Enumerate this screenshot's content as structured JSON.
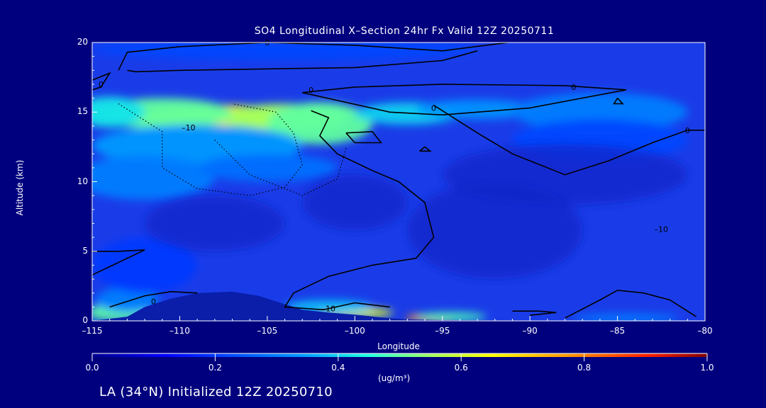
{
  "chart_data": {
    "type": "heatmap",
    "title": "SO4 Longitudinal X–Section 24hr  Fx Valid 12Z 20250711",
    "xlabel": "Longitude",
    "ylabel": "Altitude (km)",
    "xlim": [
      -115,
      -80
    ],
    "ylim": [
      0,
      20
    ],
    "xticks": [
      "–115",
      "–110",
      "–105",
      "–100",
      "–95",
      "–90",
      "–85",
      "–80"
    ],
    "xtick_values": [
      -115,
      -110,
      -105,
      -100,
      -95,
      -90,
      -85,
      -80
    ],
    "yticks": [
      "0",
      "5",
      "10",
      "15",
      "20"
    ],
    "ytick_values": [
      0,
      5,
      10,
      15,
      20
    ],
    "colorbar": {
      "range": [
        0.0,
        1.0
      ],
      "ticks": [
        "0.0",
        "0.2",
        "0.4",
        "0.6",
        "0.8",
        "1.0"
      ],
      "tick_values": [
        0.0,
        0.2,
        0.4,
        0.6,
        0.8,
        1.0
      ],
      "units": "(ug/m³)"
    },
    "field_blobs": [
      {
        "lon": -107.5,
        "alt": 14.6,
        "rlon": 5.0,
        "ralt": 0.9,
        "value": 0.66
      },
      {
        "lon": -104.0,
        "alt": 14.6,
        "rlon": 3.5,
        "ralt": 1.0,
        "value": 0.55
      },
      {
        "lon": -111.0,
        "alt": 14.9,
        "rlon": 4.0,
        "ralt": 1.1,
        "value": 0.5
      },
      {
        "lon": -102.0,
        "alt": 14.2,
        "rlon": 3.0,
        "ralt": 1.5,
        "value": 0.5
      },
      {
        "lon": -114.0,
        "alt": 15.0,
        "rlon": 2.0,
        "ralt": 1.1,
        "value": 0.42
      },
      {
        "lon": -97.0,
        "alt": 14.9,
        "rlon": 3.0,
        "ralt": 0.8,
        "value": 0.4
      },
      {
        "lon": -93.0,
        "alt": 15.2,
        "rlon": 3.5,
        "ralt": 0.7,
        "value": 0.33
      },
      {
        "lon": -86.0,
        "alt": 15.0,
        "rlon": 5.0,
        "ralt": 1.4,
        "value": 0.3
      },
      {
        "lon": -109.0,
        "alt": 12.6,
        "rlon": 6.0,
        "ralt": 1.5,
        "value": 0.34
      },
      {
        "lon": -112.0,
        "alt": 10.3,
        "rlon": 4.0,
        "ralt": 1.6,
        "value": 0.3
      },
      {
        "lon": -105.0,
        "alt": 11.0,
        "rlon": 4.0,
        "ralt": 1.0,
        "value": 0.28
      },
      {
        "lon": -104.0,
        "alt": 19.5,
        "rlon": 11.0,
        "ralt": 0.8,
        "value": 0.22
      },
      {
        "lon": -86.0,
        "alt": 13.0,
        "rlon": 5.0,
        "ralt": 1.5,
        "value": 0.22
      },
      {
        "lon": -95.5,
        "alt": 0.2,
        "rlon": 1.6,
        "ralt": 0.3,
        "value": 0.78
      },
      {
        "lon": -100.0,
        "alt": 0.6,
        "rlon": 2.2,
        "ralt": 0.35,
        "value": 0.62
      },
      {
        "lon": -113.5,
        "alt": 0.6,
        "rlon": 1.8,
        "ralt": 0.6,
        "value": 0.5
      },
      {
        "lon": -113.0,
        "alt": 1.5,
        "rlon": 1.8,
        "ralt": 0.9,
        "value": 0.3
      },
      {
        "lon": -101.5,
        "alt": 1.0,
        "rlon": 2.5,
        "ralt": 0.5,
        "value": 0.38
      },
      {
        "lon": -94.5,
        "alt": 0.3,
        "rlon": 2.0,
        "ralt": 0.3,
        "value": 0.48
      },
      {
        "lon": -84.5,
        "alt": 0.2,
        "rlon": 3.0,
        "ralt": 0.3,
        "value": 0.3
      },
      {
        "lon": -112.0,
        "alt": 4.0,
        "rlon": 3.0,
        "ralt": 2.0,
        "value": 0.2
      }
    ],
    "contours": {
      "labels": [
        "0",
        "0",
        "0",
        "0",
        "0",
        "0",
        "–10",
        "–10",
        "0",
        "–10"
      ],
      "label_positions": [
        {
          "lon": -105,
          "alt": 20.0
        },
        {
          "lon": -114.5,
          "alt": 17.0
        },
        {
          "lon": -102.5,
          "alt": 16.6
        },
        {
          "lon": -87.5,
          "alt": 16.8
        },
        {
          "lon": -95.5,
          "alt": 15.3
        },
        {
          "lon": -81.0,
          "alt": 13.7
        },
        {
          "lon": -109.5,
          "alt": 13.9
        },
        {
          "lon": -101.5,
          "alt": 0.9
        },
        {
          "lon": -111.5,
          "alt": 1.4
        },
        {
          "lon": -82.5,
          "alt": 6.6
        }
      ]
    },
    "grid": false,
    "legend": "colorbar-bottom"
  },
  "footer": "LA (34°N) Initialized 12Z 20250710"
}
